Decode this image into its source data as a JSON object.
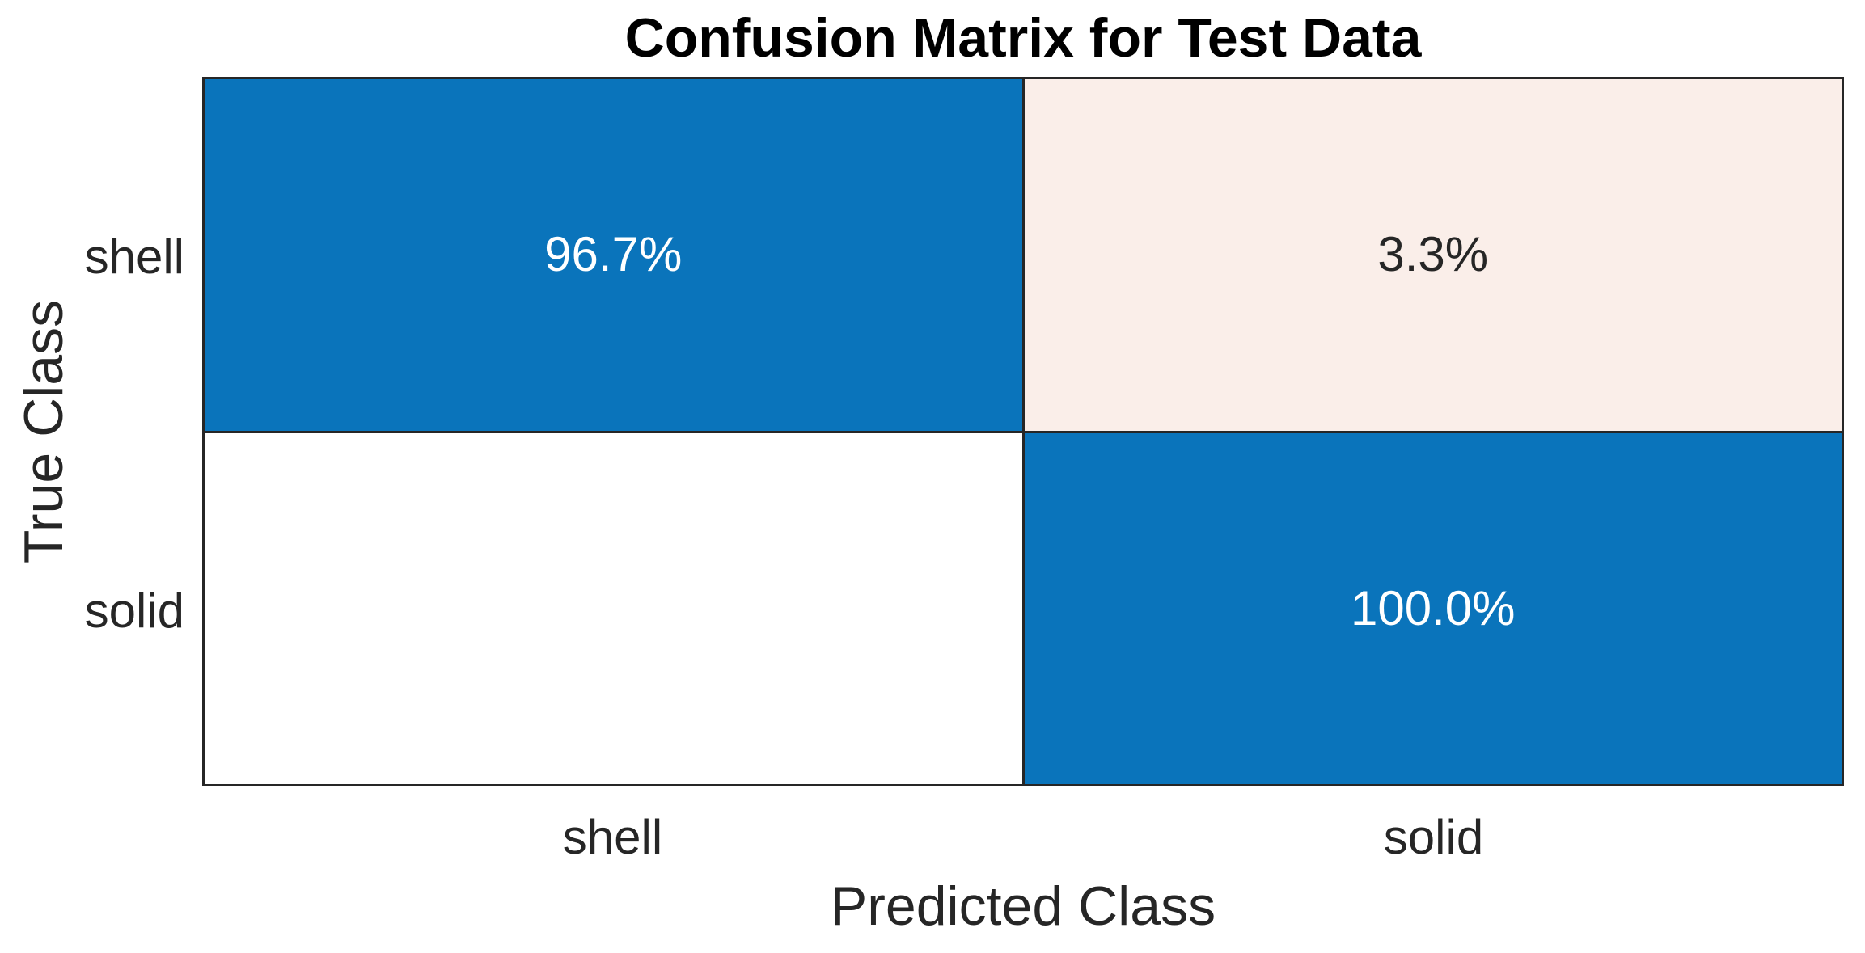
{
  "chart_data": {
    "type": "heatmap",
    "subtype": "confusion-matrix",
    "title": "Confusion Matrix for Test Data",
    "xlabel": "Predicted Class",
    "ylabel": "True Class",
    "x_categories": [
      "shell",
      "solid"
    ],
    "y_categories": [
      "shell",
      "solid"
    ],
    "normalization": "row-percent",
    "matrix_percent": [
      [
        96.7,
        3.3
      ],
      [
        0.0,
        100.0
      ]
    ],
    "cells": [
      {
        "true_class": "shell",
        "predicted_class": "shell",
        "value_percent": 96.7,
        "label": "96.7%",
        "bg": "#0A74BB",
        "text_color": "#FFFFFF",
        "css": "background-color:#0A74BB;color:#FFFFFF"
      },
      {
        "true_class": "shell",
        "predicted_class": "solid",
        "value_percent": 3.3,
        "label": "3.3%",
        "bg": "#FAEEE9",
        "text_color": "#262626",
        "css": "background-color:#FAEEE9;color:#262626"
      },
      {
        "true_class": "solid",
        "predicted_class": "shell",
        "value_percent": 0.0,
        "label": "",
        "bg": "#FFFFFF",
        "text_color": "#262626",
        "css": "background-color:#FFFFFF;color:#262626"
      },
      {
        "true_class": "solid",
        "predicted_class": "solid",
        "value_percent": 100.0,
        "label": "100.0%",
        "bg": "#0A74BB",
        "text_color": "#FFFFFF",
        "css": "background-color:#0A74BB;color:#FFFFFF"
      }
    ],
    "layout": {
      "grid": "2x2 equal cells",
      "legend": "none",
      "axes_box": true
    },
    "colors": {
      "diagonal_blue": "#0A74BB",
      "off_diagonal_tint": "#FAEEE9",
      "zero_cell_white": "#FFFFFF",
      "grid_line": "#262626",
      "axis_text": "#262626",
      "title_color": "#000000",
      "background": "#FFFFFF"
    }
  }
}
